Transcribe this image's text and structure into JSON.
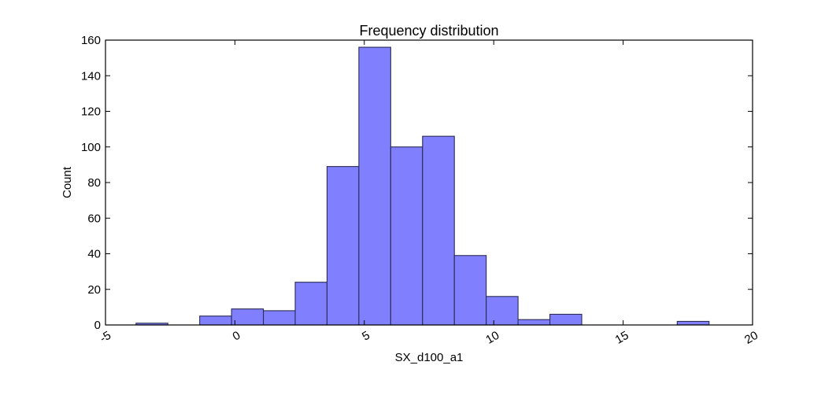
{
  "chart_data": {
    "type": "bar",
    "title": "Frequency distribution",
    "xlabel": "SX_d100_a1",
    "ylabel": "Count",
    "xlim": [
      -5,
      20
    ],
    "ylim": [
      0,
      160
    ],
    "xticks": [
      "-5",
      "0",
      "5",
      "10",
      "15",
      "20"
    ],
    "yticks": [
      "0",
      "20",
      "40",
      "60",
      "80",
      "100",
      "120",
      "140",
      "160"
    ],
    "grid": false,
    "bar_color": "#8080ff",
    "bar_edge_color": "#2a2a55",
    "bins": [
      {
        "x0": -3.82,
        "x1": -2.59,
        "count": 1
      },
      {
        "x0": -2.59,
        "x1": -1.36,
        "count": 0
      },
      {
        "x0": -1.36,
        "x1": -0.13,
        "count": 5
      },
      {
        "x0": -0.13,
        "x1": 1.1,
        "count": 9
      },
      {
        "x0": 1.1,
        "x1": 2.33,
        "count": 8
      },
      {
        "x0": 2.33,
        "x1": 3.56,
        "count": 24
      },
      {
        "x0": 3.56,
        "x1": 4.79,
        "count": 89
      },
      {
        "x0": 4.79,
        "x1": 6.02,
        "count": 156
      },
      {
        "x0": 6.02,
        "x1": 7.25,
        "count": 100
      },
      {
        "x0": 7.25,
        "x1": 8.48,
        "count": 106
      },
      {
        "x0": 8.48,
        "x1": 9.71,
        "count": 39
      },
      {
        "x0": 9.71,
        "x1": 10.94,
        "count": 16
      },
      {
        "x0": 10.94,
        "x1": 12.17,
        "count": 3
      },
      {
        "x0": 12.17,
        "x1": 13.4,
        "count": 6
      },
      {
        "x0": 13.4,
        "x1": 14.63,
        "count": 0
      },
      {
        "x0": 14.63,
        "x1": 15.86,
        "count": 0
      },
      {
        "x0": 15.86,
        "x1": 17.09,
        "count": 0
      },
      {
        "x0": 17.09,
        "x1": 18.32,
        "count": 2
      }
    ]
  }
}
